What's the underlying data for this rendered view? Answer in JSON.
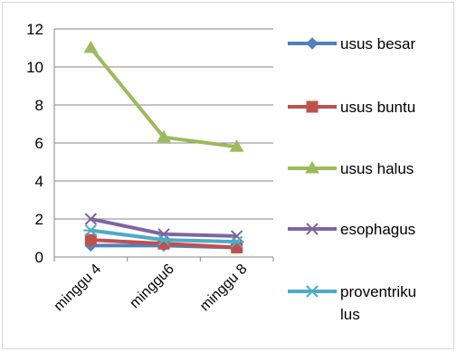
{
  "chart_data": {
    "type": "line",
    "categories": [
      "minggu 4",
      "minggu6",
      "minggu 8"
    ],
    "ylim": [
      0,
      12
    ],
    "yticks": [
      0,
      2,
      4,
      6,
      8,
      10,
      12
    ],
    "grid": true,
    "legend_position": "right",
    "series": [
      {
        "name": "usus besar",
        "values": [
          0.6,
          0.6,
          0.5
        ],
        "color": "#4f81bd",
        "marker": "diamond"
      },
      {
        "name": "usus buntu",
        "values": [
          0.9,
          0.7,
          0.5
        ],
        "color": "#c0504d",
        "marker": "square"
      },
      {
        "name": "usus halus",
        "values": [
          11.0,
          6.3,
          5.8
        ],
        "color": "#9bbb59",
        "marker": "triangle"
      },
      {
        "name": "esophagus",
        "values": [
          2.0,
          1.2,
          1.1
        ],
        "color": "#8064a2",
        "marker": "x"
      },
      {
        "name": "proventriku lus",
        "legend_lines": [
          "proventriku",
          "lus"
        ],
        "values": [
          1.4,
          0.9,
          0.8
        ],
        "color": "#4bacc6",
        "marker": "star"
      }
    ]
  }
}
